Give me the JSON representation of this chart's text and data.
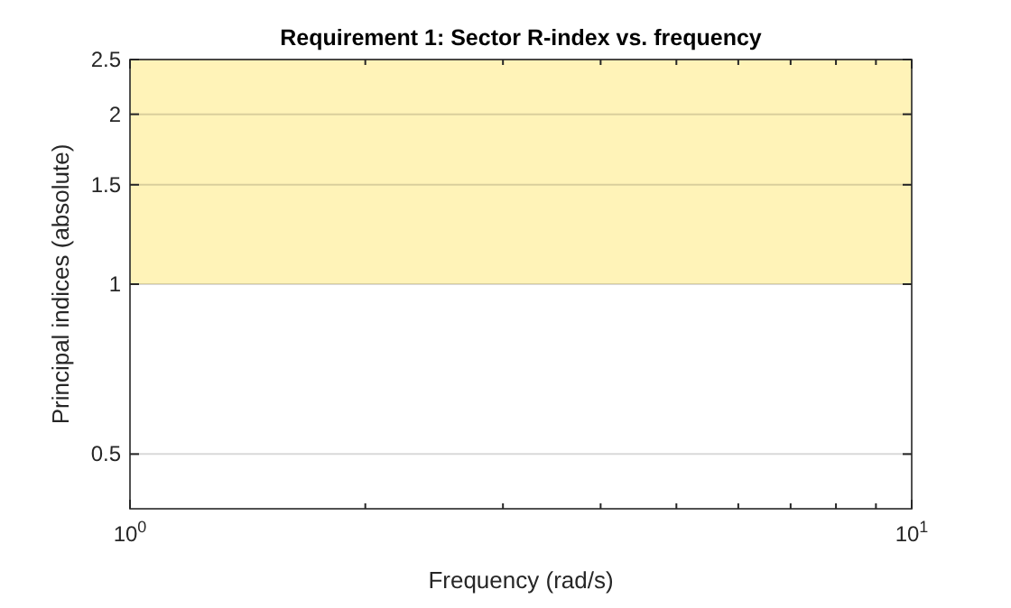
{
  "chart_data": {
    "type": "line",
    "title": "Requirement 1: Sector R-index vs. frequency",
    "xlabel": "Frequency (rad/s)",
    "ylabel": "Principal indices (absolute)",
    "log": "xy",
    "grid": "y",
    "xlim": [
      1,
      10
    ],
    "xticks": [
      {
        "value": 1,
        "label": "10$^{0}$"
      },
      {
        "value": 10,
        "label": "10$^{1}$"
      }
    ],
    "ylim": [
      0.4,
      2.5
    ],
    "yticks": [
      0.5,
      1,
      1.5,
      2,
      2.5
    ],
    "bands": [
      {
        "axis": "y",
        "from": 1,
        "to": 2.5,
        "color": "#fff3b8"
      }
    ]
  }
}
